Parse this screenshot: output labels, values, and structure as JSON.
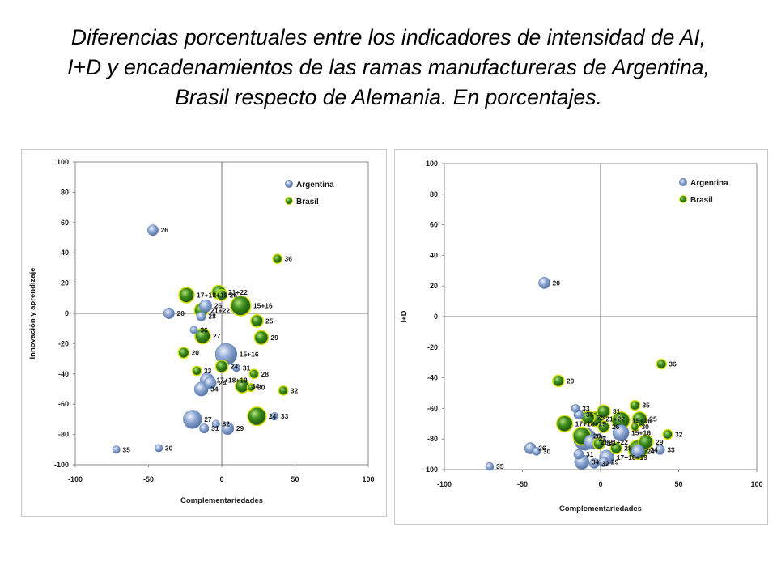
{
  "title": {
    "line1": "Diferencias porcentuales entre los indicadores de intensidad de AI,",
    "line2": "I+D y encadenamientos de las ramas manufactureras de Argentina,",
    "line3": "Brasil respecto de Alemania. En porcentajes."
  },
  "colors": {
    "argentina": "#8fa9d4",
    "brasil": "#3e8f1e",
    "brasil_rim": "#d8e000"
  },
  "chart_data": [
    {
      "type": "scatter",
      "bubble": true,
      "xlabel": "Complementariedades",
      "ylabel": "Innovación y aprendizaje",
      "xlim": [
        -100,
        100
      ],
      "ylim": [
        -100,
        100
      ],
      "xticks": [
        -100,
        -50,
        0,
        50,
        100
      ],
      "yticks": [
        100,
        80,
        60,
        40,
        20,
        0,
        -20,
        -40,
        -60,
        -80,
        -100
      ],
      "legend_position": "top-right",
      "series": [
        {
          "name": "Argentina",
          "points": [
            {
              "label": "26",
              "x": -47,
              "y": 55,
              "size": 7
            },
            {
              "label": "20",
              "x": -36,
              "y": 0,
              "size": 7
            },
            {
              "label": "36",
              "x": -19,
              "y": -11,
              "size": 5
            },
            {
              "label": "26",
              "x": -11,
              "y": 5,
              "size": 8
            },
            {
              "label": "28",
              "x": -14,
              "y": -2,
              "size": 6
            },
            {
              "label": "15+16",
              "x": 3,
              "y": -27,
              "size": 14
            },
            {
              "label": "31",
              "x": 10,
              "y": -36,
              "size": 5
            },
            {
              "label": "17+18+19",
              "x": -10,
              "y": -44,
              "size": 9
            },
            {
              "label": "24",
              "x": -8,
              "y": -46,
              "size": 8
            },
            {
              "label": "34",
              "x": -14,
              "y": -50,
              "size": 9
            },
            {
              "label": "27",
              "x": -20,
              "y": -70,
              "size": 12
            },
            {
              "label": "32",
              "x": -4,
              "y": -73,
              "size": 5
            },
            {
              "label": "31",
              "x": -12,
              "y": -76,
              "size": 6
            },
            {
              "label": "29",
              "x": 4,
              "y": -76,
              "size": 8
            },
            {
              "label": "33",
              "x": 36,
              "y": -68,
              "size": 5
            },
            {
              "label": "35",
              "x": -72,
              "y": -90,
              "size": 5
            },
            {
              "label": "30",
              "x": -43,
              "y": -89,
              "size": 5
            }
          ]
        },
        {
          "name": "Brasil",
          "points": [
            {
              "label": "36",
              "x": 38,
              "y": 36,
              "size": 6
            },
            {
              "label": "21+22",
              "x": -2,
              "y": 14,
              "size": 9
            },
            {
              "label": "26",
              "x": 0,
              "y": 12,
              "size": 7
            },
            {
              "label": "17+18+19",
              "x": -24,
              "y": 12,
              "size": 10
            },
            {
              "label": "15+16",
              "x": 13,
              "y": 5,
              "size": 13
            },
            {
              "label": "21+22",
              "x": -14,
              "y": 2,
              "size": 9
            },
            {
              "label": "25",
              "x": 24,
              "y": -5,
              "size": 8
            },
            {
              "label": "29",
              "x": 27,
              "y": -16,
              "size": 9
            },
            {
              "label": "27",
              "x": -13,
              "y": -15,
              "size": 10
            },
            {
              "label": "20",
              "x": -26,
              "y": -26,
              "size": 7
            },
            {
              "label": "33",
              "x": -17,
              "y": -38,
              "size": 6
            },
            {
              "label": "28",
              "x": 22,
              "y": -40,
              "size": 6
            },
            {
              "label": "24",
              "x": 0,
              "y": -35,
              "size": 8
            },
            {
              "label": "34",
              "x": 14,
              "y": -48,
              "size": 9
            },
            {
              "label": "30",
              "x": 20,
              "y": -49,
              "size": 5
            },
            {
              "label": "32",
              "x": 42,
              "y": -51,
              "size": 6
            },
            {
              "label": "24",
              "x": 24,
              "y": -68,
              "size": 12
            }
          ]
        }
      ]
    },
    {
      "type": "scatter",
      "bubble": true,
      "xlabel": "Complementariedades",
      "ylabel": "I+D",
      "xlim": [
        -100,
        100
      ],
      "ylim": [
        -100,
        100
      ],
      "xticks": [
        -100,
        -50,
        0,
        50,
        100
      ],
      "yticks": [
        100,
        80,
        60,
        40,
        20,
        0,
        -20,
        -40,
        -60,
        -80,
        -100
      ],
      "legend_position": "top-right",
      "series": [
        {
          "name": "Argentina",
          "points": [
            {
              "label": "20",
              "x": -36,
              "y": 22,
              "size": 7
            },
            {
              "label": "33",
              "x": -16,
              "y": -60,
              "size": 5
            },
            {
              "label": "36",
              "x": -14,
              "y": -64,
              "size": 6
            },
            {
              "label": "26",
              "x": -45,
              "y": -86,
              "size": 7
            },
            {
              "label": "30",
              "x": -41,
              "y": -88,
              "size": 5
            },
            {
              "label": "35",
              "x": -71,
              "y": -98,
              "size": 5
            },
            {
              "label": "27",
              "x": -10,
              "y": -80,
              "size": 14
            },
            {
              "label": "28",
              "x": -6,
              "y": -82,
              "size": 9
            },
            {
              "label": "15+16",
              "x": 13,
              "y": -76,
              "size": 10
            },
            {
              "label": "21+22",
              "x": -1,
              "y": -82,
              "size": 9
            },
            {
              "label": "31",
              "x": -14,
              "y": -90,
              "size": 6
            },
            {
              "label": "34",
              "x": -12,
              "y": -95,
              "size": 9
            },
            {
              "label": "32",
              "x": -4,
              "y": -96,
              "size": 6
            },
            {
              "label": "17+18+19",
              "x": 4,
              "y": -92,
              "size": 9
            },
            {
              "label": "29",
              "x": 2,
              "y": -95,
              "size": 6
            },
            {
              "label": "33",
              "x": 38,
              "y": -87,
              "size": 6
            },
            {
              "label": "24",
              "x": 24,
              "y": -88,
              "size": 8
            }
          ]
        },
        {
          "name": "Brasil",
          "points": [
            {
              "label": "36",
              "x": 39,
              "y": -31,
              "size": 6
            },
            {
              "label": "20",
              "x": -27,
              "y": -42,
              "size": 7
            },
            {
              "label": "25",
              "x": -8,
              "y": -66,
              "size": 8
            },
            {
              "label": "31",
              "x": 2,
              "y": -62,
              "size": 8
            },
            {
              "label": "35",
              "x": 22,
              "y": -58,
              "size": 6
            },
            {
              "label": "15+16",
              "x": 13,
              "y": -68,
              "size": 11
            },
            {
              "label": "25",
              "x": 25,
              "y": -67,
              "size": 9
            },
            {
              "label": "17+18+19",
              "x": -23,
              "y": -70,
              "size": 10
            },
            {
              "label": "21+22",
              "x": -3,
              "y": -67,
              "size": 9
            },
            {
              "label": "26",
              "x": 2,
              "y": -72,
              "size": 7
            },
            {
              "label": "30",
              "x": 22,
              "y": -72,
              "size": 5
            },
            {
              "label": "32",
              "x": 43,
              "y": -77,
              "size": 6
            },
            {
              "label": "28",
              "x": -12,
              "y": -78,
              "size": 11
            },
            {
              "label": "28",
              "x": -1,
              "y": -83,
              "size": 7
            },
            {
              "label": "28",
              "x": 10,
              "y": -86,
              "size": 7
            },
            {
              "label": "29",
              "x": 29,
              "y": -82,
              "size": 9
            },
            {
              "label": "24",
              "x": 24,
              "y": -87,
              "size": 12
            }
          ]
        }
      ]
    }
  ]
}
